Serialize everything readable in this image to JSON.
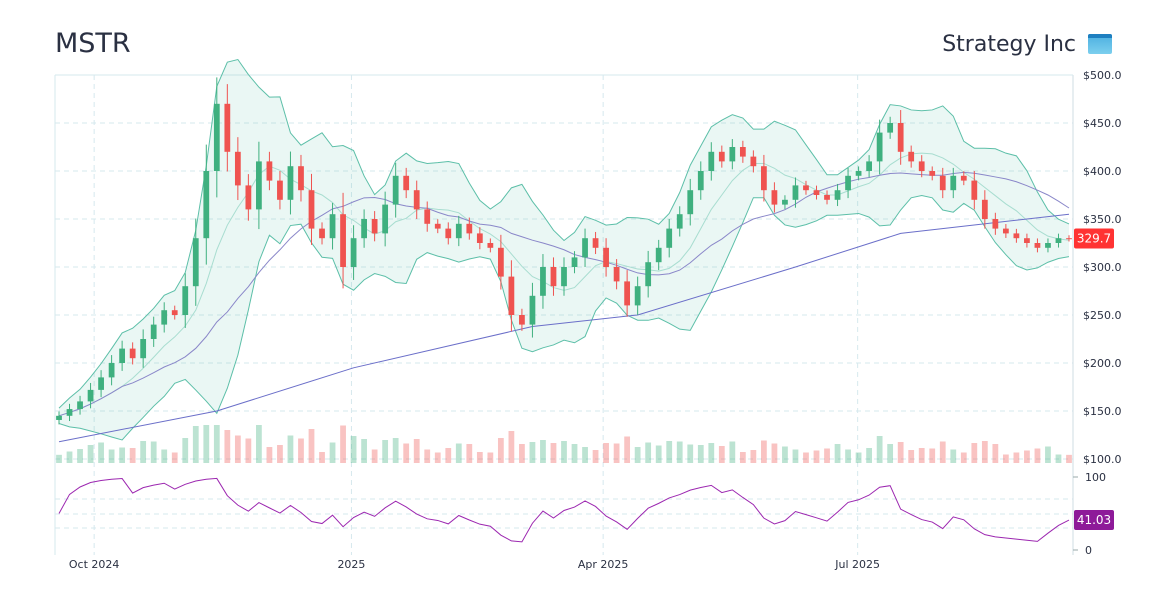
{
  "header": {
    "ticker": "MSTR",
    "company": "Strategy Inc"
  },
  "last_price_label": "329.7",
  "last_rsi_label": "41.03",
  "colors": {
    "up": "#3fb07f",
    "down": "#ef5350",
    "bb": "#5cbfa8",
    "ma50": "#8a87c9",
    "ma200": "#6b6fc9",
    "rsi": "#9c27b0",
    "price_badge": "#ff3333",
    "rsi_badge": "#8e1a99"
  },
  "chart_data": {
    "type": "candlestick",
    "start_date": "2024-09-17",
    "end_date": "2025-09-16",
    "ylim": [
      100,
      500
    ],
    "y_ticks": [
      100,
      150,
      200,
      250,
      300,
      350,
      400,
      450,
      500
    ],
    "y_tick_labels": [
      "$100.0",
      "$150.0",
      "$200.0",
      "$250.0",
      "$300.0",
      "$350.0",
      "$400.0",
      "$450.0",
      "$500.0"
    ],
    "x_ticks": [
      {
        "date": "2024-10-01",
        "label": "Oct 2024"
      },
      {
        "date": "2025-01-01",
        "label": "2025"
      },
      {
        "date": "2025-04-01",
        "label": "Apr 2025"
      },
      {
        "date": "2025-07-01",
        "label": "Jul 2025"
      }
    ],
    "closes": [
      145,
      152,
      160,
      172,
      185,
      200,
      215,
      205,
      225,
      240,
      255,
      250,
      280,
      330,
      400,
      470,
      420,
      385,
      360,
      410,
      390,
      370,
      405,
      380,
      340,
      330,
      355,
      300,
      330,
      350,
      335,
      365,
      395,
      380,
      360,
      345,
      340,
      330,
      345,
      335,
      325,
      320,
      290,
      250,
      240,
      270,
      300,
      280,
      300,
      310,
      330,
      320,
      300,
      285,
      260,
      280,
      305,
      320,
      340,
      355,
      380,
      400,
      420,
      410,
      425,
      415,
      405,
      380,
      365,
      370,
      385,
      380,
      375,
      370,
      380,
      395,
      400,
      410,
      440,
      450,
      420,
      410,
      400,
      395,
      380,
      395,
      390,
      370,
      350,
      340,
      335,
      330,
      325,
      320,
      325,
      330,
      329.7
    ],
    "ma200": [
      [
        0,
        118
      ],
      [
        15,
        150
      ],
      [
        28,
        195
      ],
      [
        45,
        238
      ],
      [
        55,
        250
      ],
      [
        70,
        300
      ],
      [
        80,
        335
      ],
      [
        96,
        355
      ]
    ],
    "rsi_panel": {
      "ylim": [
        0,
        100
      ],
      "y_tick_labels": [
        "100",
        "0"
      ],
      "last": 41.03
    }
  }
}
